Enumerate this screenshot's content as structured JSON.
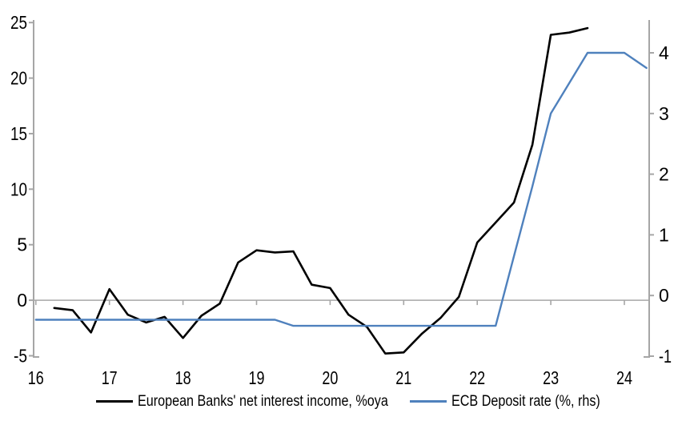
{
  "chart_data": {
    "type": "line",
    "title": "",
    "grid": "zero-line-only",
    "legend_position": "bottom",
    "axis_color": "#a6a6a6",
    "x_axis": {
      "ticks": [
        16,
        17,
        18,
        19,
        20,
        21,
        22,
        23,
        24
      ],
      "range": [
        16,
        24.34
      ]
    },
    "left_axis": {
      "ticks": [
        -5,
        0,
        5,
        10,
        15,
        20,
        25
      ],
      "range": [
        -5,
        25.25
      ]
    },
    "right_axis": {
      "ticks": [
        -1,
        0,
        1,
        2,
        3,
        4
      ],
      "range": [
        -1,
        4.55
      ]
    },
    "series": [
      {
        "name": "European Banks' net interest income, %oya",
        "axis": "left",
        "color": "#000000",
        "x": [
          16.25,
          16.5,
          16.75,
          17.0,
          17.25,
          17.5,
          17.75,
          18.0,
          18.25,
          18.5,
          18.75,
          19.0,
          19.25,
          19.5,
          19.75,
          20.0,
          20.25,
          20.5,
          20.75,
          21.0,
          21.25,
          21.5,
          21.75,
          22.0,
          22.25,
          22.5,
          22.75,
          23.0,
          23.25,
          23.5
        ],
        "values": [
          -0.7,
          -0.9,
          -2.9,
          1.0,
          -1.3,
          -2.0,
          -1.5,
          -3.4,
          -1.4,
          -0.3,
          3.4,
          4.5,
          4.3,
          4.4,
          1.4,
          1.1,
          -1.3,
          -2.4,
          -4.8,
          -4.7,
          -3.0,
          -1.6,
          0.3,
          5.2,
          7.0,
          8.8,
          14.0,
          23.9,
          24.1,
          24.5
        ]
      },
      {
        "name": "ECB Deposit rate (%, rhs)",
        "axis": "right",
        "color": "#4f81bd",
        "x": [
          16.0,
          16.25,
          16.5,
          16.75,
          17.0,
          17.25,
          17.5,
          17.75,
          18.0,
          18.25,
          18.5,
          18.75,
          19.0,
          19.25,
          19.5,
          19.75,
          20.0,
          20.25,
          20.5,
          20.75,
          21.0,
          21.25,
          21.5,
          21.75,
          22.0,
          22.25,
          22.5,
          22.75,
          23.0,
          23.25,
          23.5,
          23.75,
          24.0,
          24.3
        ],
        "values": [
          -0.4,
          -0.4,
          -0.4,
          -0.4,
          -0.4,
          -0.4,
          -0.4,
          -0.4,
          -0.4,
          -0.4,
          -0.4,
          -0.4,
          -0.4,
          -0.4,
          -0.5,
          -0.5,
          -0.5,
          -0.5,
          -0.5,
          -0.5,
          -0.5,
          -0.5,
          -0.5,
          -0.5,
          -0.5,
          -0.5,
          0.65,
          1.8,
          3.0,
          3.5,
          4.0,
          4.0,
          4.0,
          3.75
        ]
      }
    ]
  },
  "legend": {
    "items": [
      {
        "label": "European Banks' net interest income, %oya"
      },
      {
        "label": "ECB Deposit rate (%, rhs)"
      }
    ]
  }
}
